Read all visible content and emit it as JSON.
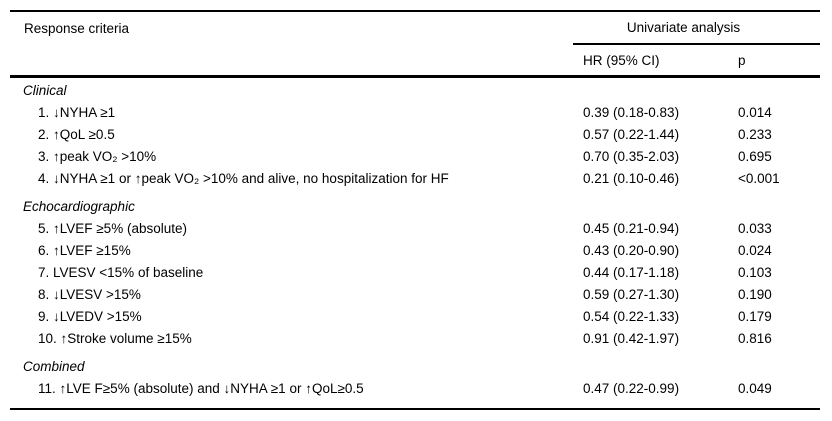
{
  "table": {
    "criteria_header": "Response criteria",
    "spanner_header": "Univariate analysis",
    "col_hr": "HR (95% CI)",
    "col_p": "p",
    "sections": [
      {
        "name": "Clinical",
        "rows": [
          {
            "label": "1. ↓NYHA ≥1",
            "hr": "0.39 (0.18-0.83)",
            "p": "0.014"
          },
          {
            "label": "2. ↑QoL ≥0.5",
            "hr": "0.57 (0.22-1.44)",
            "p": "0.233"
          },
          {
            "label": "3. ↑peak VO₂ >10%",
            "hr": "0.70 (0.35-2.03)",
            "p": "0.695"
          },
          {
            "label": "4. ↓NYHA ≥1 or ↑peak VO₂ >10% and alive, no hospitalization for HF",
            "hr": "0.21 (0.10-0.46)",
            "p": "<0.001"
          }
        ]
      },
      {
        "name": "Echocardiographic",
        "rows": [
          {
            "label": "5. ↑LVEF ≥5% (absolute)",
            "hr": "0.45 (0.21-0.94)",
            "p": "0.033"
          },
          {
            "label": "6. ↑LVEF ≥15%",
            "hr": "0.43 (0.20-0.90)",
            "p": "0.024"
          },
          {
            "label": "7. LVESV <15% of baseline",
            "hr": "0.44 (0.17-1.18)",
            "p": "0.103"
          },
          {
            "label": "8. ↓LVESV >15%",
            "hr": "0.59 (0.27-1.30)",
            "p": "0.190"
          },
          {
            "label": "9. ↓LVEDV >15%",
            "hr": "0.54 (0.22-1.33)",
            "p": "0.179"
          },
          {
            "label": "10. ↑Stroke volume ≥15%",
            "hr": "0.91 (0.42-1.97)",
            "p": "0.816"
          }
        ]
      },
      {
        "name": "Combined",
        "rows": [
          {
            "label": "11. ↑LVE F≥5% (absolute) and ↓NYHA ≥1 or ↑QoL≥0.5",
            "hr": "0.47 (0.22-0.99)",
            "p": "0.049"
          }
        ]
      }
    ]
  }
}
